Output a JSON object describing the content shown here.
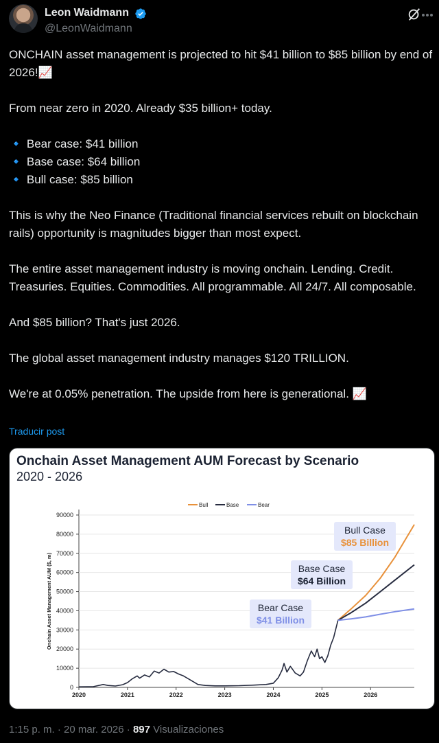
{
  "author": {
    "name": "Leon Waidmann",
    "handle": "@LeonWaidmann"
  },
  "tweet": {
    "text": "ONCHAIN asset management is projected to hit $41 billion to $85 billion by end of 2026!📈\n\nFrom near zero in 2020. Already $35 billion+ today.\n\n🔹 Bear case: $41 billion\n🔹 Base case: $64 billion\n🔹 Bull case: $85 billion\n\nThis is why the Neo Finance (Traditional financial services rebuilt on blockchain rails) opportunity is magnitudes bigger than most expect.\n\nThe entire asset management industry is moving onchain. Lending. Credit. Treasuries. Equities. Commodities. All programmable. All 24/7. All composable.\n\nAnd $85 billion? That's just 2026.\n\nThe global asset management industry manages $120 TRILLION.\n\nWe're at 0.05% penetration. The upside from here is generational. 📈",
    "translate_label": "Traducir post"
  },
  "footer": {
    "time": "1:15 p. m. · 20 mar. 2026 · ",
    "views_count": "897",
    "views_label": " Visualizaciones"
  },
  "colors": {
    "bull": "#e8913a",
    "base": "#262b3f",
    "bear": "#7f8fe6",
    "accent": "#1d9bf0",
    "verified": "#1d9bf0"
  },
  "icons": {
    "verified": "verified-badge-icon",
    "grok": "grok-icon",
    "more": "more-options-icon"
  },
  "chart_data": {
    "type": "line",
    "title": "Onchain Asset Management AUM Forecast by Scenario",
    "subtitle": "2020 - 2026",
    "ylabel": "Onchain Asset Management AUM ($, m)",
    "xlabel": "",
    "ylim": [
      0,
      90000
    ],
    "yticks": [
      0,
      10000,
      20000,
      30000,
      40000,
      50000,
      60000,
      70000,
      80000,
      90000
    ],
    "xlim": [
      2020,
      2026.9
    ],
    "xticks": [
      "2020",
      "2021",
      "2022",
      "2023",
      "2024",
      "2025",
      "2026"
    ],
    "legend_position": "top-center",
    "legend": [
      "Bull",
      "Base",
      "Bear"
    ],
    "historical": {
      "name": "Base",
      "points": [
        [
          2020.0,
          300
        ],
        [
          2020.3,
          400
        ],
        [
          2020.5,
          1500
        ],
        [
          2020.6,
          1000
        ],
        [
          2020.75,
          700
        ],
        [
          2020.9,
          1400
        ],
        [
          2021.0,
          2500
        ],
        [
          2021.1,
          4500
        ],
        [
          2021.2,
          6000
        ],
        [
          2021.25,
          4800
        ],
        [
          2021.35,
          6500
        ],
        [
          2021.45,
          5500
        ],
        [
          2021.55,
          8500
        ],
        [
          2021.65,
          7500
        ],
        [
          2021.75,
          9500
        ],
        [
          2021.85,
          8000
        ],
        [
          2021.95,
          8300
        ],
        [
          2022.05,
          7000
        ],
        [
          2022.15,
          6000
        ],
        [
          2022.25,
          4500
        ],
        [
          2022.35,
          3000
        ],
        [
          2022.45,
          1500
        ],
        [
          2022.6,
          1000
        ],
        [
          2022.8,
          800
        ],
        [
          2023.0,
          800
        ],
        [
          2023.3,
          900
        ],
        [
          2023.6,
          1200
        ],
        [
          2023.85,
          1500
        ],
        [
          2024.0,
          2200
        ],
        [
          2024.1,
          5000
        ],
        [
          2024.18,
          9000
        ],
        [
          2024.22,
          12500
        ],
        [
          2024.28,
          8000
        ],
        [
          2024.35,
          11000
        ],
        [
          2024.45,
          7500
        ],
        [
          2024.55,
          6000
        ],
        [
          2024.62,
          8000
        ],
        [
          2024.7,
          14000
        ],
        [
          2024.78,
          19000
        ],
        [
          2024.85,
          16000
        ],
        [
          2024.9,
          20000
        ],
        [
          2024.95,
          15000
        ],
        [
          2025.0,
          16000
        ],
        [
          2025.06,
          13000
        ],
        [
          2025.12,
          16500
        ],
        [
          2025.18,
          22000
        ],
        [
          2025.24,
          26000
        ],
        [
          2025.28,
          30000
        ],
        [
          2025.33,
          35000
        ]
      ]
    },
    "series": [
      {
        "name": "Bull",
        "x": [
          2025.33,
          2025.6,
          2025.9,
          2026.2,
          2026.5,
          2026.9
        ],
        "values": [
          35000,
          41000,
          48000,
          57000,
          68000,
          85000
        ]
      },
      {
        "name": "Base",
        "x": [
          2025.33,
          2025.6,
          2025.9,
          2026.2,
          2026.5,
          2026.9
        ],
        "values": [
          35000,
          39000,
          44000,
          50000,
          56000,
          64000
        ]
      },
      {
        "name": "Bear",
        "x": [
          2025.33,
          2025.6,
          2025.9,
          2026.2,
          2026.5,
          2026.9
        ],
        "values": [
          35000,
          35800,
          36800,
          38200,
          39500,
          41000
        ]
      }
    ],
    "annotations": [
      {
        "series": "Bull",
        "label": "Bull Case",
        "value": "$85 Billion"
      },
      {
        "series": "Base",
        "label": "Base Case",
        "value": "$64 Billion"
      },
      {
        "series": "Bear",
        "label": "Bear Case",
        "value": "$41 Billion"
      }
    ]
  }
}
